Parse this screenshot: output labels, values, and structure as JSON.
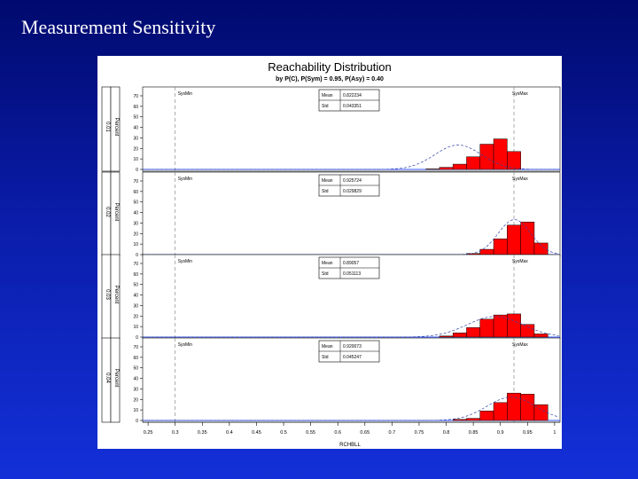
{
  "slide": {
    "title": "Measurement Sensitivity"
  },
  "colors": {
    "background": "#0a1ca8",
    "bar": "#ff0000",
    "bar_edge": "#000000",
    "normal_curve": "#3344aa",
    "baseline": "#3355ff",
    "ref_line": "#888888"
  },
  "chart_data": {
    "type": "bar",
    "title": "Reachability Distribution",
    "subtitle": "by P(C), P(Sym) = 0.95, P(Asy) = 0.40",
    "xlabel": "RCHBLL",
    "xticks": [
      0.25,
      0.3,
      0.35,
      0.4,
      0.45,
      0.5,
      0.55,
      0.6,
      0.65,
      0.7,
      0.75,
      0.8,
      0.85,
      0.9,
      0.95,
      1
    ],
    "xlim": [
      0.24,
      1.01
    ],
    "ylim": [
      0,
      70
    ],
    "yticks": [
      0,
      10,
      20,
      30,
      40,
      50,
      60,
      70
    ],
    "ylabel": "Percent",
    "bin_width": 0.025,
    "ref_lines": [
      {
        "label": "SysMin",
        "x": 0.3
      },
      {
        "label": "SysMax",
        "x": 0.925
      }
    ],
    "panels": [
      {
        "group": "0.01",
        "mean": "0.822234",
        "std": "0.043351",
        "mean_val": 0.822,
        "std_val": 0.043,
        "bins": [
          {
            "x": 0.775,
            "pct": 0.5
          },
          {
            "x": 0.8,
            "pct": 2
          },
          {
            "x": 0.825,
            "pct": 5
          },
          {
            "x": 0.85,
            "pct": 12
          },
          {
            "x": 0.875,
            "pct": 24
          },
          {
            "x": 0.9,
            "pct": 29
          },
          {
            "x": 0.925,
            "pct": 17
          }
        ]
      },
      {
        "group": "0.02",
        "mean": "0.925724",
        "std": "0.029829",
        "mean_val": 0.926,
        "std_val": 0.03,
        "bins": [
          {
            "x": 0.85,
            "pct": 1
          },
          {
            "x": 0.875,
            "pct": 5
          },
          {
            "x": 0.9,
            "pct": 15
          },
          {
            "x": 0.925,
            "pct": 28
          },
          {
            "x": 0.95,
            "pct": 31
          },
          {
            "x": 0.975,
            "pct": 11
          }
        ]
      },
      {
        "group": "0.03",
        "mean": "0.89057",
        "std": "0.051113",
        "mean_val": 0.89,
        "std_val": 0.051,
        "bins": [
          {
            "x": 0.8,
            "pct": 1
          },
          {
            "x": 0.825,
            "pct": 4
          },
          {
            "x": 0.85,
            "pct": 9
          },
          {
            "x": 0.875,
            "pct": 17
          },
          {
            "x": 0.9,
            "pct": 21
          },
          {
            "x": 0.925,
            "pct": 22
          },
          {
            "x": 0.95,
            "pct": 12
          },
          {
            "x": 0.975,
            "pct": 3
          }
        ]
      },
      {
        "group": "0.04",
        "mean": "0.920073",
        "std": "0.045247",
        "mean_val": 0.92,
        "std_val": 0.045,
        "bins": [
          {
            "x": 0.825,
            "pct": 1
          },
          {
            "x": 0.85,
            "pct": 2
          },
          {
            "x": 0.875,
            "pct": 9
          },
          {
            "x": 0.9,
            "pct": 17
          },
          {
            "x": 0.925,
            "pct": 26
          },
          {
            "x": 0.95,
            "pct": 25
          },
          {
            "x": 0.975,
            "pct": 15
          }
        ]
      }
    ],
    "stat_labels": {
      "mean": "Mean",
      "std": "Std"
    },
    "grid": false,
    "legend": "none"
  }
}
